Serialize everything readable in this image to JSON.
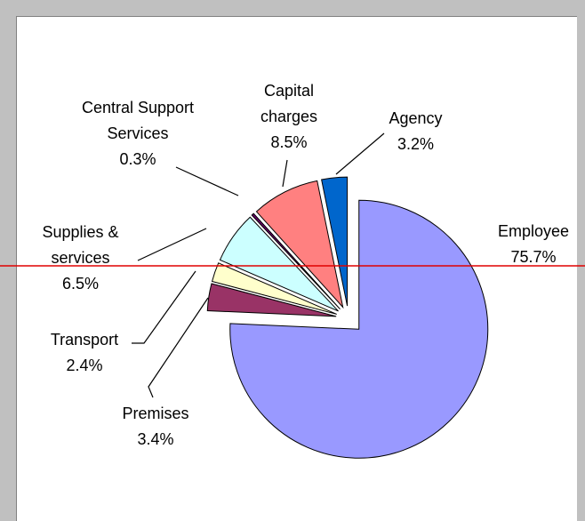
{
  "chart_data": {
    "type": "pie",
    "categories": [
      "Employee",
      "Premises",
      "Transport",
      "Supplies & services",
      "Central Support Services",
      "Capital charges",
      "Agency"
    ],
    "values": [
      75.7,
      3.4,
      2.4,
      6.5,
      0.3,
      8.5,
      3.2
    ],
    "value_labels": [
      "75.7%",
      "3.4%",
      "2.4%",
      "6.5%",
      "0.3%",
      "8.5%",
      "3.2%"
    ],
    "colors": [
      "#9999ff",
      "#993366",
      "#ffffcc",
      "#ccffff",
      "#660066",
      "#ff8080",
      "#0066cc"
    ]
  }
}
